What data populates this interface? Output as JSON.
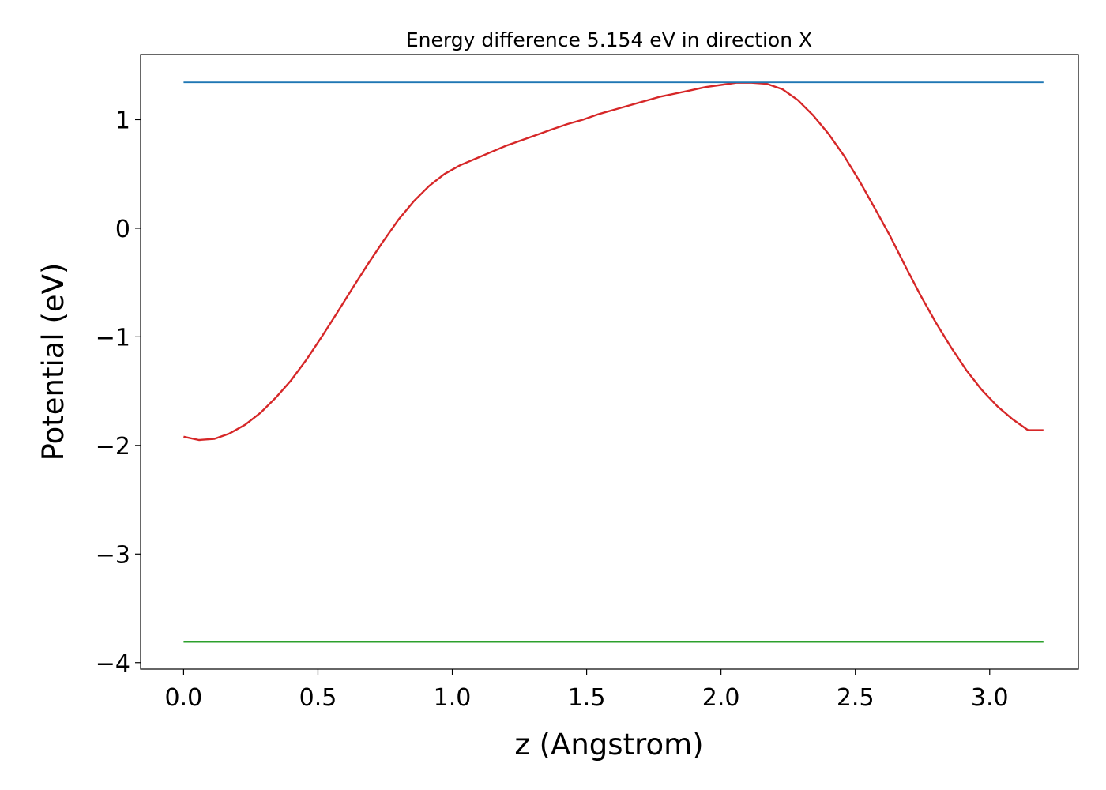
{
  "chart_data": {
    "type": "line",
    "title": "Energy difference 5.154 eV in direction X",
    "xlabel": "z (Angstrom)",
    "ylabel": "Potential (eV)",
    "xlim": [
      -0.16,
      3.33
    ],
    "ylim": [
      -4.06,
      1.6
    ],
    "grid": false,
    "x_ticks": [
      0.0,
      0.5,
      1.0,
      1.5,
      2.0,
      2.5,
      3.0
    ],
    "x_tick_labels": [
      "0.0",
      "0.5",
      "1.0",
      "1.5",
      "2.0",
      "2.5",
      "3.0"
    ],
    "y_ticks": [
      1,
      0,
      -1,
      -2,
      -3,
      -4
    ],
    "y_tick_labels": [
      "1",
      "0",
      "−1",
      "−2",
      "−3",
      "−4"
    ],
    "series": [
      {
        "color": "#d62728",
        "x": [
          0.0,
          0.057,
          0.114,
          0.171,
          0.229,
          0.286,
          0.343,
          0.4,
          0.457,
          0.514,
          0.571,
          0.629,
          0.686,
          0.743,
          0.8,
          0.857,
          0.914,
          0.971,
          1.029,
          1.086,
          1.143,
          1.2,
          1.257,
          1.314,
          1.371,
          1.429,
          1.486,
          1.543,
          1.6,
          1.657,
          1.714,
          1.771,
          1.829,
          1.886,
          1.943,
          2.0,
          2.057,
          2.114,
          2.171,
          2.229,
          2.286,
          2.343,
          2.4,
          2.457,
          2.514,
          2.571,
          2.629,
          2.686,
          2.743,
          2.8,
          2.857,
          2.914,
          2.971,
          3.029,
          3.086,
          3.143,
          3.2
        ],
        "values": [
          -1.92,
          -1.95,
          -1.94,
          -1.89,
          -1.81,
          -1.7,
          -1.56,
          -1.4,
          -1.21,
          -1.0,
          -0.78,
          -0.55,
          -0.33,
          -0.12,
          0.08,
          0.25,
          0.39,
          0.5,
          0.58,
          0.64,
          0.7,
          0.76,
          0.81,
          0.86,
          0.91,
          0.96,
          1.0,
          1.05,
          1.09,
          1.13,
          1.17,
          1.21,
          1.24,
          1.27,
          1.3,
          1.32,
          1.34,
          1.34,
          1.33,
          1.28,
          1.18,
          1.04,
          0.87,
          0.67,
          0.44,
          0.19,
          -0.07,
          -0.35,
          -0.62,
          -0.87,
          -1.1,
          -1.31,
          -1.49,
          -1.64,
          -1.76,
          -1.86,
          -1.86
        ]
      },
      {
        "color": "#1f77b4",
        "x": [
          0.0,
          3.2
        ],
        "values": [
          1.344,
          1.344
        ]
      },
      {
        "color": "#2ca02c",
        "x": [
          0.0,
          3.2
        ],
        "values": [
          -3.81,
          -3.81
        ]
      }
    ]
  }
}
